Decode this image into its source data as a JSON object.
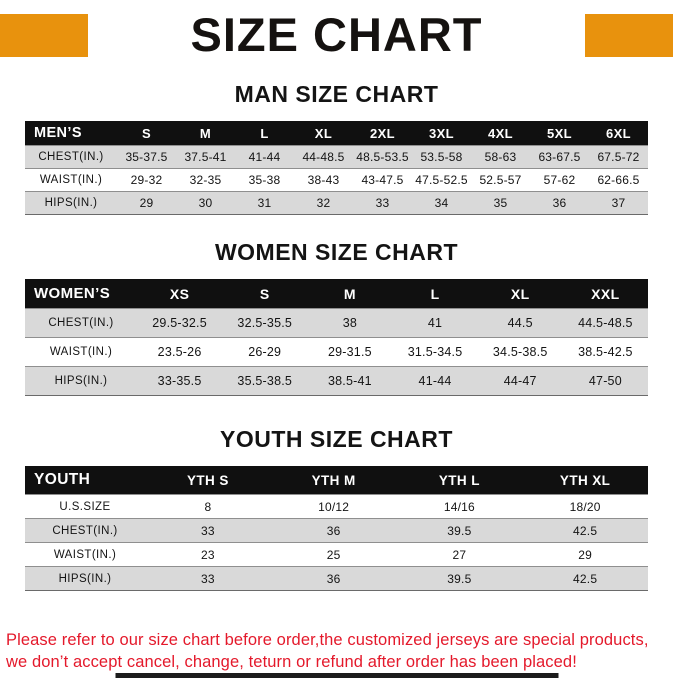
{
  "page": {
    "title": "SIZE CHART"
  },
  "colors": {
    "accent_orange": "#e8920d",
    "header_black": "#101010",
    "row_shade_gray": "#d9d9d9",
    "footer_red": "#e4192b"
  },
  "tables": [
    {
      "title": "MAN SIZE CHART",
      "header": [
        "MEN’S",
        "S",
        "M",
        "L",
        "XL",
        "2XL",
        "3XL",
        "4XL",
        "5XL",
        "6XL"
      ],
      "rows": [
        [
          "CHEST(IN.)",
          "35-37.5",
          "37.5-41",
          "41-44",
          "44-48.5",
          "48.5-53.5",
          "53.5-58",
          "58-63",
          "63-67.5",
          "67.5-72"
        ],
        [
          "WAIST(IN.)",
          "29-32",
          "32-35",
          "35-38",
          "38-43",
          "43-47.5",
          "47.5-52.5",
          "52.5-57",
          "57-62",
          "62-66.5"
        ],
        [
          "HIPS(IN.)",
          "29",
          "30",
          "31",
          "32",
          "33",
          "34",
          "35",
          "36",
          "37"
        ]
      ]
    },
    {
      "title": "WOMEN SIZE CHART",
      "header": [
        "WOMEN’S",
        "XS",
        "S",
        "M",
        "L",
        "XL",
        "XXL"
      ],
      "rows": [
        [
          "CHEST(IN.)",
          "29.5-32.5",
          "32.5-35.5",
          "38",
          "41",
          "44.5",
          "44.5-48.5"
        ],
        [
          "WAIST(IN.)",
          "23.5-26",
          "26-29",
          "29-31.5",
          "31.5-34.5",
          "34.5-38.5",
          "38.5-42.5"
        ],
        [
          "HIPS(IN.)",
          "33-35.5",
          "35.5-38.5",
          "38.5-41",
          "41-44",
          "44-47",
          "47-50"
        ]
      ]
    },
    {
      "title": "YOUTH SIZE CHART",
      "header": [
        "YOUTH",
        "YTH S",
        "YTH M",
        "YTH L",
        "YTH XL"
      ],
      "rows": [
        [
          "U.S.SIZE",
          "8",
          "10/12",
          "14/16",
          "18/20"
        ],
        [
          "CHEST(IN.)",
          "33",
          "36",
          "39.5",
          "42.5"
        ],
        [
          "WAIST(IN.)",
          "23",
          "25",
          "27",
          "29"
        ],
        [
          "HIPS(IN.)",
          "33",
          "36",
          "39.5",
          "42.5"
        ]
      ]
    }
  ],
  "footer": {
    "line1": "Please refer to our size chart before order,the customized jerseys are special products,",
    "line2": "we don’t accept cancel, change, teturn or refund after order has been placed!"
  }
}
